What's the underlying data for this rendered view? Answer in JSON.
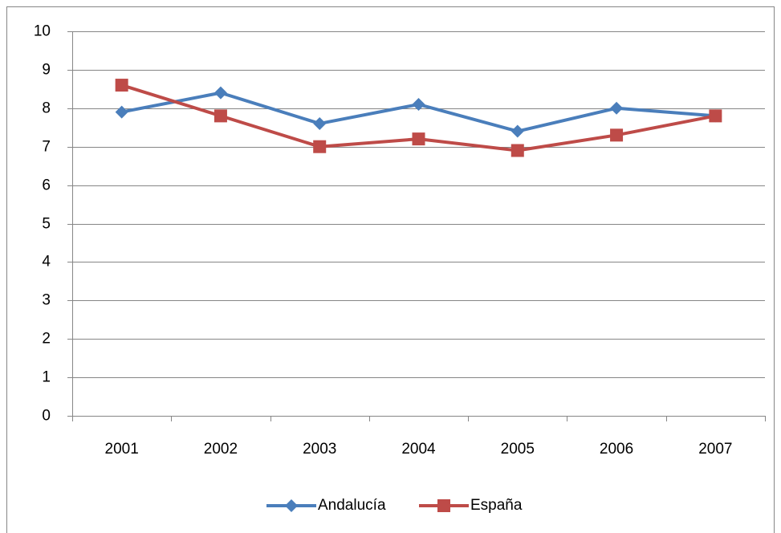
{
  "chart_data": {
    "type": "line",
    "categories": [
      "2001",
      "2002",
      "2003",
      "2004",
      "2005",
      "2006",
      "2007"
    ],
    "series": [
      {
        "name": "Andalucía",
        "color": "#4a7ebb",
        "marker": "diamond",
        "values": [
          7.9,
          8.4,
          7.6,
          8.1,
          7.4,
          8.0,
          7.8
        ]
      },
      {
        "name": "España",
        "color": "#be4b48",
        "marker": "square",
        "values": [
          8.6,
          7.8,
          7.0,
          7.2,
          6.9,
          7.3,
          7.8
        ]
      }
    ],
    "ylim": [
      0,
      10
    ],
    "yticks": [
      0,
      1,
      2,
      3,
      4,
      5,
      6,
      7,
      8,
      9,
      10
    ],
    "grid": true,
    "legend": "bottom"
  }
}
